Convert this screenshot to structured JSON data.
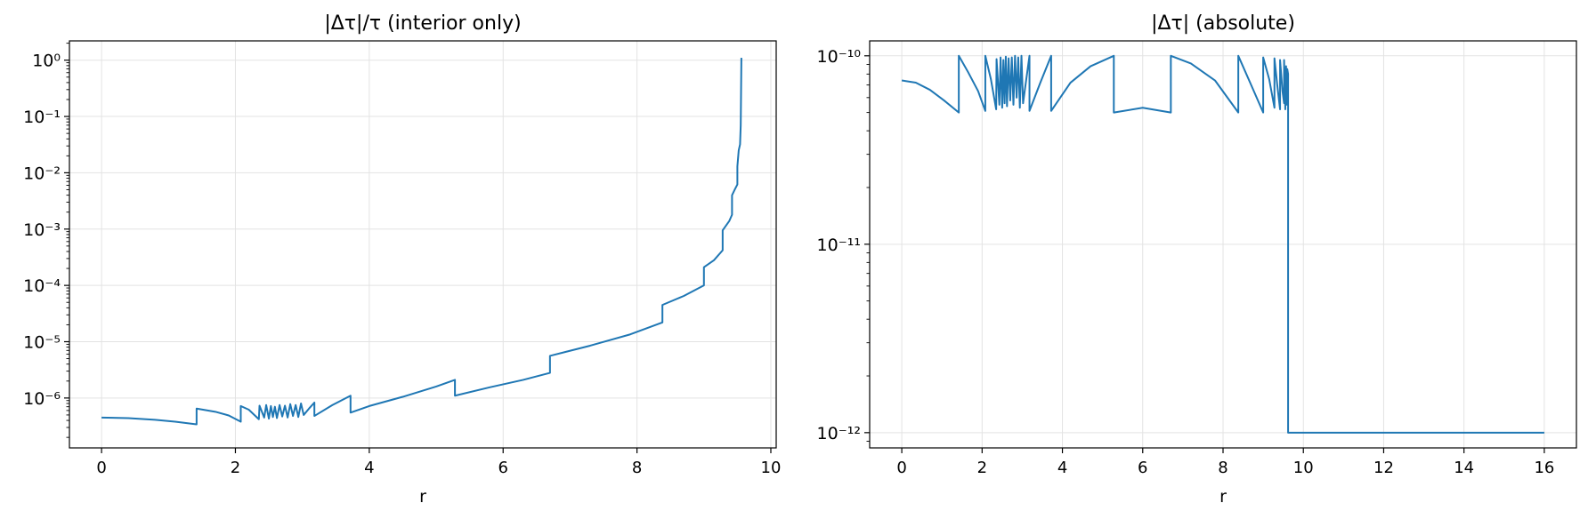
{
  "chart_data": [
    {
      "type": "line",
      "title": "|Δτ|/τ (interior only)",
      "xlabel": "r",
      "ylabel": "",
      "yscale": "log",
      "xlim": [
        -0.48,
        10.08
      ],
      "ylim": [
        1.3e-07,
        2.2
      ],
      "xticks": [
        0,
        2,
        4,
        6,
        8,
        10
      ],
      "xtick_labels": [
        "0",
        "2",
        "4",
        "6",
        "8",
        "10"
      ],
      "yticks": [
        1e-06,
        1e-05,
        0.0001,
        0.001,
        0.01,
        0.1,
        1
      ],
      "ytick_labels": [
        "10⁻⁶",
        "10⁻⁵",
        "10⁻⁴",
        "10⁻³",
        "10⁻²",
        "10⁻¹",
        "10⁰"
      ],
      "grid": true,
      "line_color": "#1f77b4",
      "series": [
        {
          "x": [
            0,
            0.4,
            0.8,
            1.1,
            1.42,
            1.42,
            1.7,
            1.9,
            2.08,
            2.08,
            2.2,
            2.35,
            2.36,
            2.43,
            2.46,
            2.5,
            2.53,
            2.56,
            2.59,
            2.62,
            2.66,
            2.7,
            2.74,
            2.78,
            2.82,
            2.86,
            2.9,
            2.94,
            2.98,
            3.02,
            3.1,
            3.18,
            3.18,
            3.45,
            3.72,
            3.72,
            4.0,
            4.5,
            5.0,
            5.28,
            5.28,
            5.8,
            6.3,
            6.7,
            6.7,
            7.3,
            7.9,
            8.38,
            8.38,
            8.7,
            9.0,
            9.0,
            9.15,
            9.28,
            9.28,
            9.38,
            9.42,
            9.42,
            9.46,
            9.5,
            9.5,
            9.52,
            9.54,
            9.55,
            9.56
          ],
          "y": [
            4.5e-07,
            4.4e-07,
            4.1e-07,
            3.8e-07,
            3.4e-07,
            6.5e-07,
            5.7e-07,
            4.9e-07,
            3.8e-07,
            7.2e-07,
            6.2e-07,
            4.2e-07,
            7.3e-07,
            4.5e-07,
            7.5e-07,
            4.3e-07,
            7.2e-07,
            4.6e-07,
            7e-07,
            4.4e-07,
            7.5e-07,
            4.7e-07,
            7.3e-07,
            4.5e-07,
            7.8e-07,
            4.8e-07,
            7.5e-07,
            4.6e-07,
            8e-07,
            5e-07,
            6.5e-07,
            8.3e-07,
            4.8e-07,
            7.5e-07,
            1.1e-06,
            5.5e-07,
            7.2e-07,
            1.05e-06,
            1.6e-06,
            2.1e-06,
            1.1e-06,
            1.55e-06,
            2.1e-06,
            2.8e-06,
            5.6e-06,
            8.5e-06,
            1.35e-05,
            2.2e-05,
            4.5e-05,
            6.5e-05,
            0.0001,
            0.00021,
            0.00028,
            0.00042,
            0.00095,
            0.0014,
            0.0018,
            0.004,
            0.005,
            0.0062,
            0.013,
            0.025,
            0.032,
            0.07,
            1.1
          ]
        }
      ]
    },
    {
      "type": "line",
      "title": "|Δτ| (absolute)",
      "xlabel": "r",
      "ylabel": "",
      "yscale": "log",
      "xlim": [
        -0.8,
        16.8
      ],
      "ylim": [
        8.3e-13,
        1.2e-10
      ],
      "xticks": [
        0,
        2,
        4,
        6,
        8,
        10,
        12,
        14,
        16
      ],
      "xtick_labels": [
        "0",
        "2",
        "4",
        "6",
        "8",
        "10",
        "12",
        "14",
        "16"
      ],
      "yticks": [
        1e-12,
        1e-11,
        1e-10
      ],
      "ytick_labels": [
        "10⁻¹²",
        "10⁻¹¹",
        "10⁻¹⁰"
      ],
      "grid": true,
      "line_color": "#1f77b4",
      "series": [
        {
          "x": [
            0,
            0.35,
            0.7,
            1.05,
            1.42,
            1.42,
            1.65,
            1.9,
            2.08,
            2.08,
            2.22,
            2.35,
            2.36,
            2.43,
            2.46,
            2.5,
            2.53,
            2.56,
            2.59,
            2.62,
            2.66,
            2.7,
            2.74,
            2.78,
            2.82,
            2.86,
            2.9,
            2.94,
            2.98,
            3.02,
            3.1,
            3.18,
            3.18,
            3.45,
            3.72,
            3.72,
            4.2,
            4.7,
            5.28,
            5.28,
            6.0,
            6.7,
            6.7,
            7.2,
            7.8,
            8.38,
            8.38,
            8.7,
            9.0,
            9.0,
            9.15,
            9.28,
            9.28,
            9.35,
            9.42,
            9.42,
            9.48,
            9.52,
            9.52,
            9.55,
            9.57,
            9.58,
            9.6,
            9.62,
            9.62,
            16
          ],
          "y": [
            7.4e-11,
            7.2e-11,
            6.6e-11,
            5.8e-11,
            5e-11,
            1e-10,
            8.2e-11,
            6.5e-11,
            5.1e-11,
            1e-10,
            7.5e-11,
            5.2e-11,
            9.6e-11,
            5.5e-11,
            9.8e-11,
            5.3e-11,
            9.5e-11,
            5.6e-11,
            9.9e-11,
            5.4e-11,
            9.7e-11,
            5.8e-11,
            9.8e-11,
            5.5e-11,
            1e-10,
            6e-11,
            9.8e-11,
            5.3e-11,
            1e-10,
            5.6e-11,
            7.5e-11,
            1e-10,
            5.1e-11,
            7.2e-11,
            1e-10,
            5.1e-11,
            7.2e-11,
            8.8e-11,
            1e-10,
            5e-11,
            5.3e-11,
            5e-11,
            1e-10,
            9.1e-11,
            7.4e-11,
            5e-11,
            1e-10,
            7e-11,
            5e-11,
            9.8e-11,
            7.5e-11,
            5.3e-11,
            9.7e-11,
            7e-11,
            5.2e-11,
            9.5e-11,
            6.5e-11,
            5.6e-11,
            9.5e-11,
            5.2e-11,
            8.8e-11,
            5.5e-11,
            8.5e-11,
            8e-11,
            1e-12,
            1e-12
          ]
        }
      ]
    }
  ]
}
